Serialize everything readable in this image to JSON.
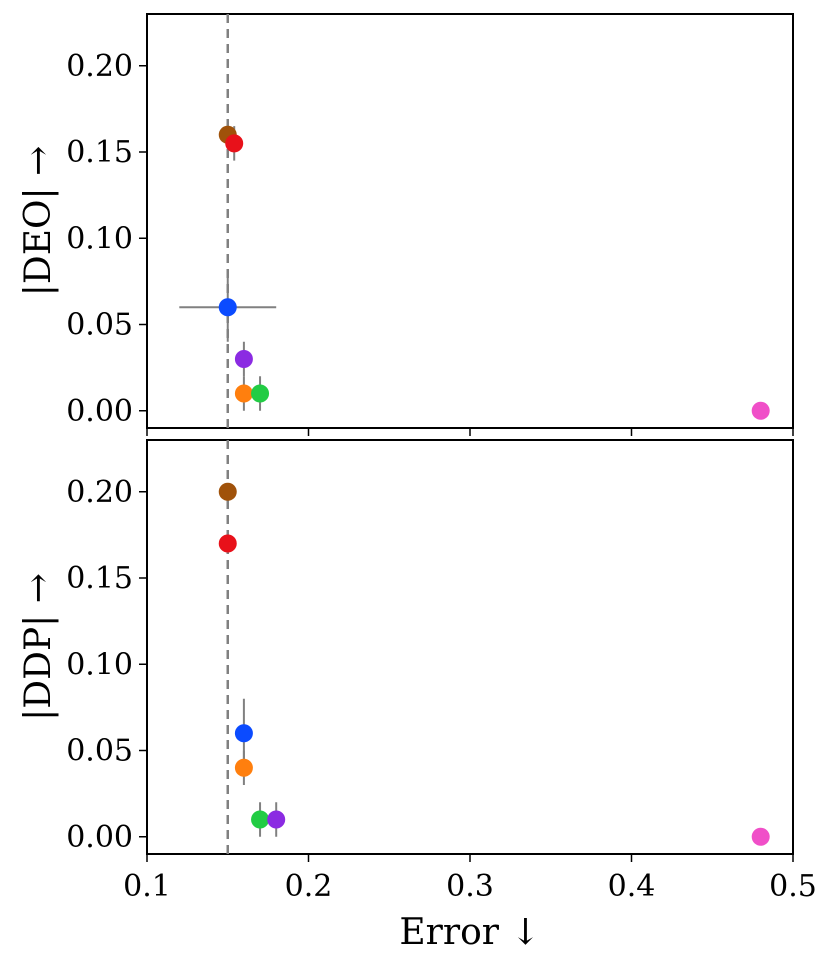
{
  "chart_data": [
    {
      "type": "scatter",
      "ylabel": "|DEO| →",
      "xlim": [
        0.1,
        0.5
      ],
      "ylim": [
        -0.01,
        0.23
      ],
      "yticks": [
        "0.00",
        "0.05",
        "0.10",
        "0.15",
        "0.20"
      ],
      "xticks_labels_shown": false,
      "reference_line_x": 0.15,
      "points": [
        {
          "x": 0.15,
          "y": 0.16,
          "color": "#A0520A",
          "xerr": 0.0,
          "yerr": 0.0
        },
        {
          "x": 0.154,
          "y": 0.155,
          "color": "#E8111A",
          "xerr": 0.0,
          "yerr": 0.01
        },
        {
          "x": 0.15,
          "y": 0.06,
          "color": "#0B4BFF",
          "xerr": 0.03,
          "yerr": 0.02
        },
        {
          "x": 0.16,
          "y": 0.03,
          "color": "#8B2BE2",
          "xerr": 0.0,
          "yerr": 0.01
        },
        {
          "x": 0.16,
          "y": 0.01,
          "color": "#FF7F0E",
          "xerr": 0.0,
          "yerr": 0.01
        },
        {
          "x": 0.17,
          "y": 0.01,
          "color": "#22CC44",
          "xerr": 0.0,
          "yerr": 0.01
        },
        {
          "x": 0.48,
          "y": 0.0,
          "color": "#F04FC8",
          "xerr": 0.0,
          "yerr": 0.0
        }
      ]
    },
    {
      "type": "scatter",
      "ylabel": "|DDP| →",
      "xlabel": "Error ↓",
      "xlim": [
        0.1,
        0.5
      ],
      "ylim": [
        -0.01,
        0.23
      ],
      "yticks": [
        "0.00",
        "0.05",
        "0.10",
        "0.15",
        "0.20"
      ],
      "xticks": [
        "0.1",
        "0.2",
        "0.3",
        "0.4",
        "0.5"
      ],
      "reference_line_x": 0.15,
      "points": [
        {
          "x": 0.15,
          "y": 0.2,
          "color": "#A0520A",
          "xerr": 0.0,
          "yerr": 0.0
        },
        {
          "x": 0.15,
          "y": 0.17,
          "color": "#E8111A",
          "xerr": 0.0,
          "yerr": 0.0
        },
        {
          "x": 0.16,
          "y": 0.06,
          "color": "#0B4BFF",
          "xerr": 0.005,
          "yerr": 0.02
        },
        {
          "x": 0.16,
          "y": 0.04,
          "color": "#FF7F0E",
          "xerr": 0.0,
          "yerr": 0.01
        },
        {
          "x": 0.17,
          "y": 0.01,
          "color": "#22CC44",
          "xerr": 0.0,
          "yerr": 0.01
        },
        {
          "x": 0.18,
          "y": 0.01,
          "color": "#8B2BE2",
          "xerr": 0.0,
          "yerr": 0.01
        },
        {
          "x": 0.48,
          "y": 0.0,
          "color": "#F04FC8",
          "xerr": 0.0,
          "yerr": 0.0
        }
      ]
    }
  ]
}
